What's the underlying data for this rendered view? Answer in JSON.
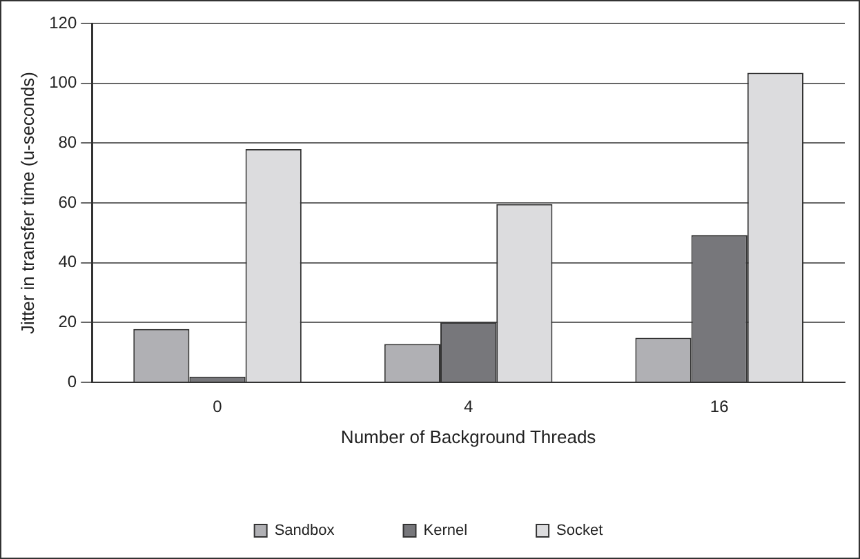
{
  "chart_data": {
    "type": "bar",
    "xlabel": "Number of Background Threads",
    "ylabel": "Jitter in transfer time (u-seconds)",
    "categories": [
      "0",
      "4",
      "16"
    ],
    "series": [
      {
        "name": "Sandbox",
        "color": "#b0b0b4",
        "values": [
          17.8,
          12.8,
          14.9
        ]
      },
      {
        "name": "Kernel",
        "color": "#77777b",
        "values": [
          1.9,
          20.1,
          49.2
        ]
      },
      {
        "name": "Socket",
        "color": "#dcdcde",
        "values": [
          78,
          59.6,
          103.5
        ]
      }
    ],
    "ylim": [
      0,
      120
    ],
    "yticks": [
      0,
      20,
      40,
      60,
      80,
      100,
      120
    ],
    "grid": "y",
    "legend": "bottom"
  }
}
